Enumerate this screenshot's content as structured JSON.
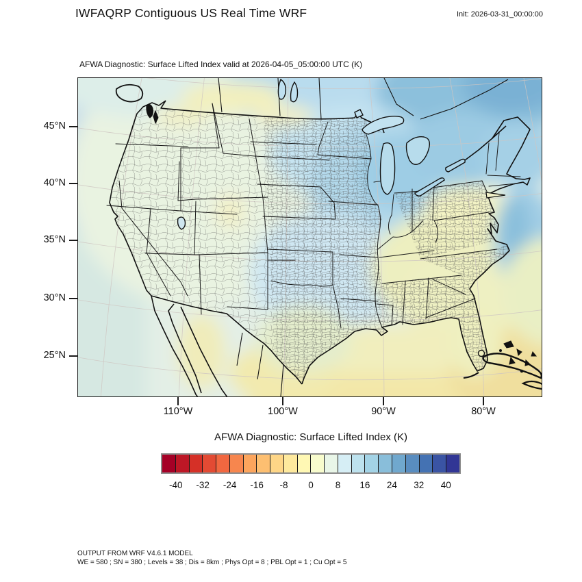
{
  "header": {
    "title": "IWFAQRP Contiguous US Real Time WRF",
    "init": "Init: 2026-03-31_00:00:00"
  },
  "map": {
    "subtitle": "AFWA Diagnostic: Surface Lifted Index valid at 2026-04-05_05:00:00 UTC   (K)",
    "y_ticks": [
      "45°N",
      "40°N",
      "35°N",
      "30°N",
      "25°N"
    ],
    "x_ticks": [
      "110°W",
      "100°W",
      "90°W",
      "80°W"
    ]
  },
  "colorbar": {
    "title": "AFWA Diagnostic: Surface Lifted Index  (K)",
    "units": "K",
    "tick_labels": [
      "-40",
      "-32",
      "-24",
      "-16",
      "-8",
      "0",
      "8",
      "16",
      "24",
      "32",
      "40"
    ],
    "colors": [
      "#a50026",
      "#bd1726",
      "#d53027",
      "#e34a33",
      "#f16740",
      "#f7864e",
      "#fca55d",
      "#fdbf71",
      "#fed687",
      "#fee99d",
      "#fff8b4",
      "#f8fccd",
      "#e9f6e8",
      "#d6eef5",
      "#bde2ee",
      "#a3d3e6",
      "#89beda",
      "#70a8ce",
      "#598dc0",
      "#4472b3",
      "#3a54a4",
      "#313695"
    ]
  },
  "footer": {
    "line1": "OUTPUT FROM WRF V4.6.1 MODEL",
    "line2": "WE = 580 ; SN = 380 ; Levels = 38 ; Dis = 8km ; Phys Opt = 8 ; PBL Opt = 1 ; Cu Opt = 5"
  },
  "chart_data": {
    "type": "heatmap",
    "title": "AFWA Diagnostic: Surface Lifted Index valid at 2026-04-05_05:00:00 UTC (K)",
    "x_tick_labels": [
      "110°W",
      "100°W",
      "90°W",
      "80°W"
    ],
    "y_tick_labels": [
      "45°N",
      "40°N",
      "35°N",
      "30°N",
      "25°N"
    ],
    "colorbar_boundaries": [
      -44,
      -40,
      -36,
      -32,
      -28,
      -24,
      -20,
      -16,
      -12,
      -8,
      -4,
      0,
      4,
      8,
      12,
      16,
      20,
      24,
      28,
      32,
      36,
      40,
      44
    ],
    "colorbar_tick_values": [
      -40,
      -32,
      -24,
      -16,
      -8,
      0,
      8,
      16,
      24,
      32,
      40
    ],
    "units": "K",
    "legend_position": "bottom",
    "field_reading": [
      {
        "region": "Pacific Northwest / Great Basin land",
        "approx_value_K": 2
      },
      {
        "region": "Northern plains, Upper Midwest, Corn Belt",
        "approx_value_K": 10
      },
      {
        "region": "Great Lakes and southern Canada / Quebec",
        "approx_value_K": 16
      },
      {
        "region": "New England coastal waters",
        "approx_value_K": 12
      },
      {
        "region": "New York / Pennsylvania / Appalachians",
        "approx_value_K": -2
      },
      {
        "region": "Southeast US (GA, AL, Carolinas, FL)",
        "approx_value_K": -3
      },
      {
        "region": "Gulf of Mexico and far southeast Atlantic",
        "approx_value_K": -7
      },
      {
        "region": "Texas / southern plains",
        "approx_value_K": 6
      },
      {
        "region": "Northern Mexico",
        "approx_value_K": -4
      }
    ]
  }
}
